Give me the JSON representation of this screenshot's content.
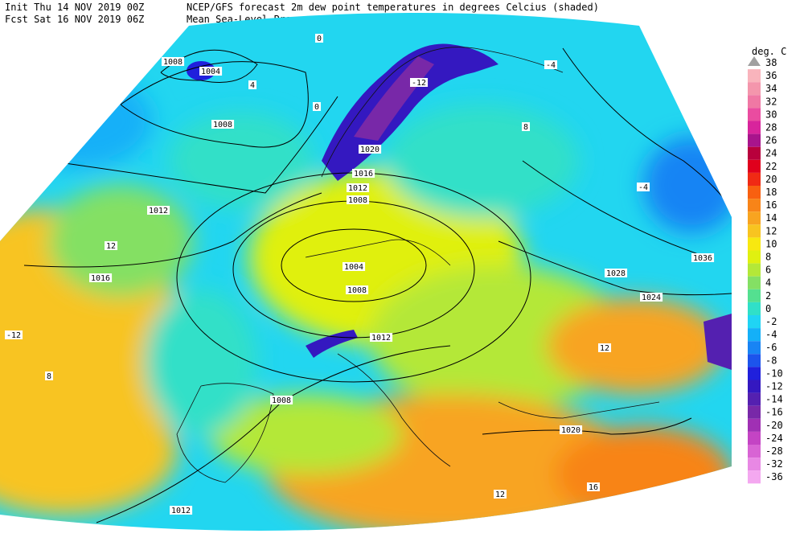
{
  "header": {
    "init": "Init  Thu 14 NOV 2019 00Z",
    "fcst": "Fcst Sat 16 NOV 2019 06Z",
    "title": "NCEP/GFS forecast 2m dew point temperatures in degrees Celcius (shaded)",
    "subtitle": "Mean Sea-Level Pressure (hPa) (black)."
  },
  "legend": {
    "title": "deg. C",
    "labels": [
      38,
      36,
      34,
      32,
      30,
      28,
      26,
      24,
      22,
      20,
      18,
      16,
      14,
      12,
      10,
      8,
      6,
      4,
      2,
      0,
      -2,
      -4,
      -6,
      -8,
      -10,
      -12,
      -14,
      -16,
      -20,
      -24,
      -28,
      -32,
      -36
    ],
    "colors": [
      "#a0a0a0",
      "#f9b4bc",
      "#f496ac",
      "#f078a4",
      "#ea4ca0",
      "#d8249c",
      "#a8148c",
      "#b8003c",
      "#e0001c",
      "#f02a14",
      "#f86010",
      "#f88418",
      "#f8a420",
      "#f8c420",
      "#f8e810",
      "#e0f010",
      "#b4e838",
      "#84e064",
      "#54e090",
      "#30e0c8",
      "#20d4f4",
      "#14b0f8",
      "#1884f4",
      "#1c54ec",
      "#2020dc",
      "#3418c0",
      "#5420b0",
      "#7828a8",
      "#a030b4",
      "#c444c4",
      "#d864d4",
      "#e888e4",
      "#f4a8f0"
    ]
  },
  "map_labels": [
    "1004",
    "1008",
    "1008",
    "1012",
    "1016",
    "1020",
    "1016",
    "1012",
    "1008",
    "1004",
    "1008",
    "1012",
    "1008",
    "1012",
    "1020",
    "1024",
    "1028",
    "1036",
    "-12",
    "12",
    "-12",
    "8",
    "12",
    "16",
    "12",
    "0",
    "4",
    "0",
    "-4",
    "8",
    "-4"
  ]
}
